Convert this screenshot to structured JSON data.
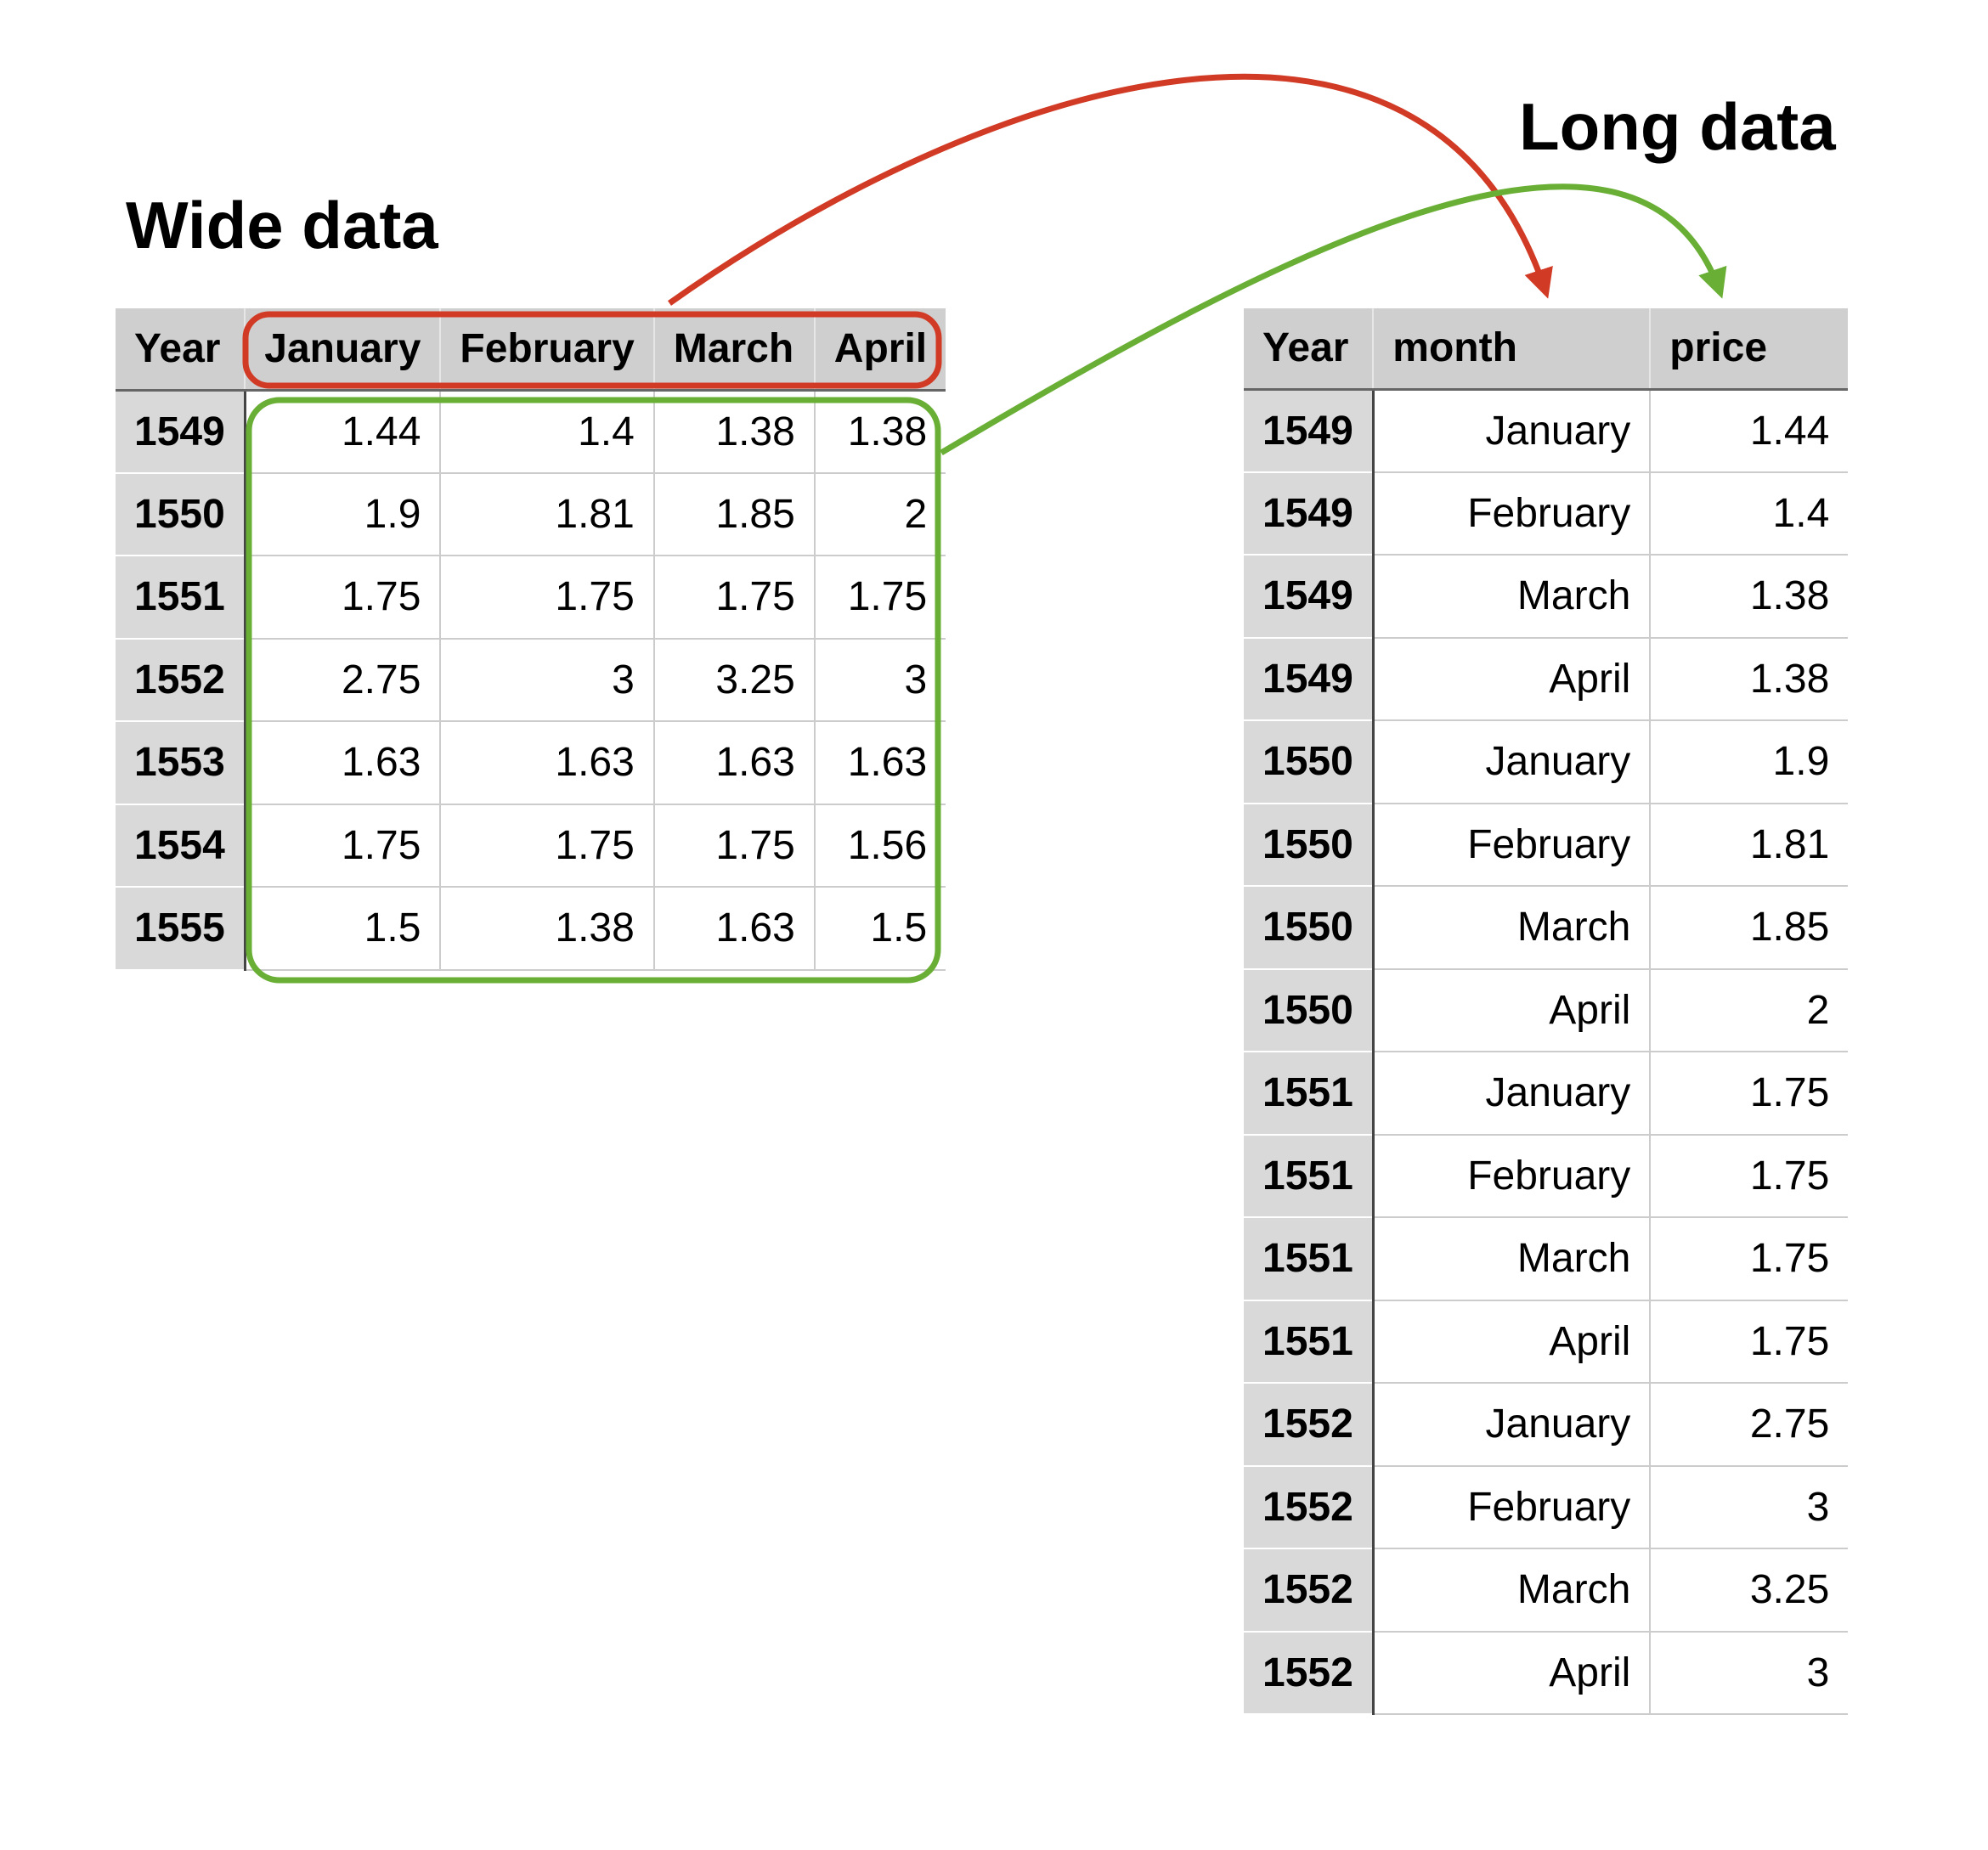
{
  "wide": {
    "title": "Wide data",
    "headers": [
      "Year",
      "January",
      "February",
      "March",
      "April"
    ],
    "rows": [
      [
        "1549",
        "1.44",
        "1.4",
        "1.38",
        "1.38"
      ],
      [
        "1550",
        "1.9",
        "1.81",
        "1.85",
        "2"
      ],
      [
        "1551",
        "1.75",
        "1.75",
        "1.75",
        "1.75"
      ],
      [
        "1552",
        "2.75",
        "3",
        "3.25",
        "3"
      ],
      [
        "1553",
        "1.63",
        "1.63",
        "1.63",
        "1.63"
      ],
      [
        "1554",
        "1.75",
        "1.75",
        "1.75",
        "1.56"
      ],
      [
        "1555",
        "1.5",
        "1.38",
        "1.63",
        "1.5"
      ]
    ]
  },
  "long": {
    "title": "Long data",
    "headers": [
      "Year",
      "month",
      "price"
    ],
    "rows": [
      [
        "1549",
        "January",
        "1.44"
      ],
      [
        "1549",
        "February",
        "1.4"
      ],
      [
        "1549",
        "March",
        "1.38"
      ],
      [
        "1549",
        "April",
        "1.38"
      ],
      [
        "1550",
        "January",
        "1.9"
      ],
      [
        "1550",
        "February",
        "1.81"
      ],
      [
        "1550",
        "March",
        "1.85"
      ],
      [
        "1550",
        "April",
        "2"
      ],
      [
        "1551",
        "January",
        "1.75"
      ],
      [
        "1551",
        "February",
        "1.75"
      ],
      [
        "1551",
        "March",
        "1.75"
      ],
      [
        "1551",
        "April",
        "1.75"
      ],
      [
        "1552",
        "January",
        "2.75"
      ],
      [
        "1552",
        "February",
        "3"
      ],
      [
        "1552",
        "March",
        "3.25"
      ],
      [
        "1552",
        "April",
        "3"
      ]
    ]
  },
  "colors": {
    "month_arrow": "#d13a24",
    "value_arrow": "#6aaf35",
    "header_bg": "#cfcfcf",
    "year_bg": "#d9d9d9"
  }
}
